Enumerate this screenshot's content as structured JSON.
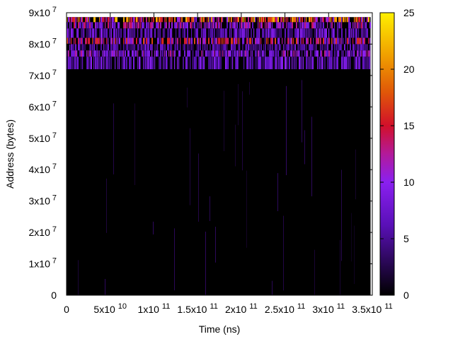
{
  "chart_data": {
    "type": "heatmap",
    "title": "",
    "xlabel": "Time (ns)",
    "ylabel": "Address (bytes)",
    "xlim": [
      0,
      350000000000
    ],
    "ylim": [
      0,
      90000000
    ],
    "x_data_extent": [
      0,
      348000000000
    ],
    "y_data_extent": [
      0,
      88600000
    ],
    "x_ticks": [
      {
        "value": 0,
        "mant": "0",
        "exp": ""
      },
      {
        "value": 50000000000,
        "mant": "5x10",
        "exp": "10"
      },
      {
        "value": 100000000000,
        "mant": "1x10",
        "exp": "11"
      },
      {
        "value": 150000000000,
        "mant": "1.5x10",
        "exp": "11"
      },
      {
        "value": 200000000000,
        "mant": "2x10",
        "exp": "11"
      },
      {
        "value": 250000000000,
        "mant": "2.5x10",
        "exp": "11"
      },
      {
        "value": 300000000000,
        "mant": "3x10",
        "exp": "11"
      },
      {
        "value": 350000000000,
        "mant": "3.5x10",
        "exp": "11"
      }
    ],
    "y_ticks": [
      {
        "value": 0,
        "mant": "0",
        "exp": ""
      },
      {
        "value": 10000000,
        "mant": "1x10",
        "exp": "7"
      },
      {
        "value": 20000000,
        "mant": "2x10",
        "exp": "7"
      },
      {
        "value": 30000000,
        "mant": "3x10",
        "exp": "7"
      },
      {
        "value": 40000000,
        "mant": "4x10",
        "exp": "7"
      },
      {
        "value": 50000000,
        "mant": "5x10",
        "exp": "7"
      },
      {
        "value": 60000000,
        "mant": "6x10",
        "exp": "7"
      },
      {
        "value": 70000000,
        "mant": "7x10",
        "exp": "7"
      },
      {
        "value": 80000000,
        "mant": "8x10",
        "exp": "7"
      },
      {
        "value": 90000000,
        "mant": "9x10",
        "exp": "7"
      }
    ],
    "colorbar": {
      "range": [
        0,
        25
      ],
      "ticks": [
        {
          "value": 0,
          "label": "0"
        },
        {
          "value": 5,
          "label": "5"
        },
        {
          "value": 10,
          "label": "10"
        },
        {
          "value": 15,
          "label": "15"
        },
        {
          "value": 20,
          "label": "20"
        },
        {
          "value": 25,
          "label": "25"
        }
      ],
      "palette": "black-purple-red-orange-yellow",
      "stops": [
        [
          0.0,
          "#000000"
        ],
        [
          0.25,
          "#5a10b8"
        ],
        [
          0.4,
          "#8a20f0"
        ],
        [
          0.5,
          "#b31a9a"
        ],
        [
          0.6,
          "#d2102a"
        ],
        [
          0.72,
          "#e05808"
        ],
        [
          0.85,
          "#f0a000"
        ],
        [
          1.0,
          "#fff000"
        ]
      ]
    },
    "grid": false,
    "legend": "none",
    "intensity_bands": [
      {
        "y_range": [
          0,
          72000000
        ],
        "level": 0.3,
        "note": "mostly zero with sparse faint streaks"
      },
      {
        "y_range": [
          72000000,
          76000000
        ],
        "level": 7
      },
      {
        "y_range": [
          76000000,
          78000000
        ],
        "level": 9
      },
      {
        "y_range": [
          78000000,
          80000000
        ],
        "level": 6
      },
      {
        "y_range": [
          80000000,
          82000000
        ],
        "level": 12
      },
      {
        "y_range": [
          82000000,
          85000000
        ],
        "level": 7
      },
      {
        "y_range": [
          85000000,
          87000000
        ],
        "level": 10
      },
      {
        "y_range": [
          87000000,
          88600000
        ],
        "level": 16
      }
    ]
  }
}
